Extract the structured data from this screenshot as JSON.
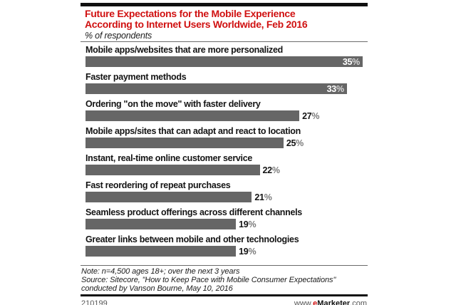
{
  "header": {
    "title_line1": "Future Expectations for the Mobile Experience",
    "title_line2": "According to Internet Users Worldwide, Feb 2016",
    "subtitle": "% of respondents"
  },
  "chart_data": {
    "type": "bar",
    "orientation": "horizontal",
    "title": "Future Expectations for the Mobile Experience According to Internet Users Worldwide, Feb 2016",
    "xlabel": "",
    "ylabel": "",
    "unit": "%",
    "xlim": [
      0,
      35
    ],
    "grid": false,
    "legend": false,
    "bar_color": "#666666",
    "categories": [
      "Mobile apps/websites that are more personalized",
      "Faster payment methods",
      "Ordering \"on the move\" with faster delivery",
      "Mobile apps/sites that can adapt and react to location",
      "Instant, real-time online customer service",
      "Fast reordering of repeat purchases",
      "Seamless product offerings across different channels",
      "Greater links between mobile and other technologies"
    ],
    "values": [
      35,
      33,
      27,
      25,
      22,
      21,
      19,
      19
    ],
    "value_label_positions": [
      "inside",
      "inside",
      "outside",
      "outside",
      "outside",
      "outside",
      "outside",
      "outside"
    ]
  },
  "footnotes": {
    "note": "Note: n=4,500 ages 18+; over the next 3 years",
    "source_line1": "Source: Sitecore, \"How to Keep Pace with Mobile Consumer Expectations\"",
    "source_line2": "conducted by Vanson Bourne, May 10, 2016"
  },
  "footer": {
    "chart_id": "210199",
    "site_prefix": "www.",
    "site_e": "e",
    "site_name": "Marketer",
    "site_suffix": ".com"
  },
  "colors": {
    "accent_red": "#d01111",
    "bar_gray": "#666666",
    "rule_dark": "#101010"
  }
}
